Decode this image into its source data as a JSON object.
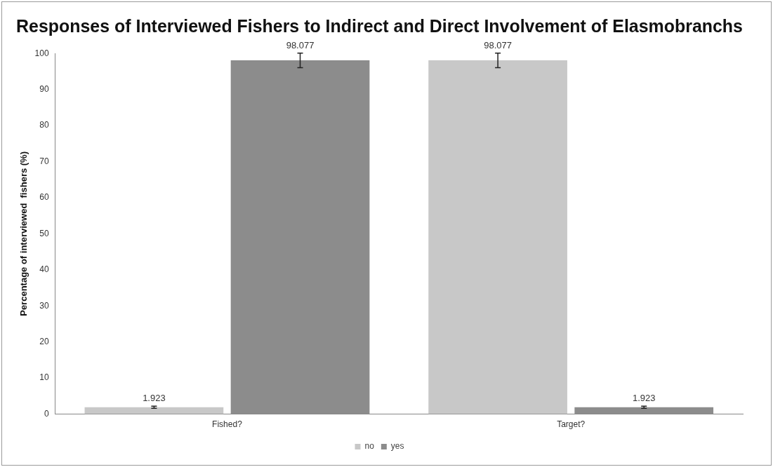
{
  "chart_data": {
    "type": "bar",
    "title": "Responses of Interviewed Fishers to Indirect and Direct Involvement of Elasmobranchs",
    "ylabel": "Percentage of interviewed  fishers (%)",
    "categories": [
      "Fished?",
      "Target?"
    ],
    "series": [
      {
        "name": "no",
        "color": "#c8c8c8",
        "values": [
          1.923,
          98.077
        ],
        "errors": [
          0.3,
          2
        ]
      },
      {
        "name": "yes",
        "color": "#8c8c8c",
        "values": [
          98.077,
          1.923
        ],
        "errors": [
          2,
          0.3
        ]
      }
    ],
    "ylim": [
      0,
      100
    ],
    "yticks": [
      0,
      10,
      20,
      30,
      40,
      50,
      60,
      70,
      80,
      90,
      100
    ],
    "grid": false,
    "legend": "bottom",
    "data_labels": true
  }
}
